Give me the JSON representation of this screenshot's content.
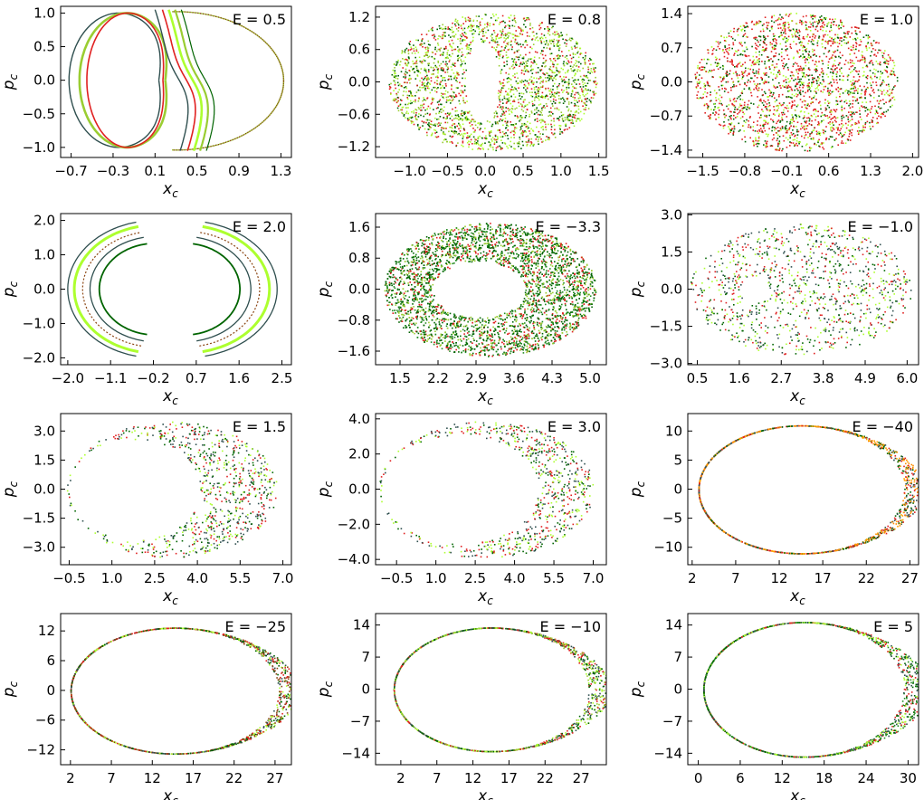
{
  "chart_data": [
    {
      "type": "scatter",
      "annotation": "E = 0.5",
      "xlabel": "x",
      "xlabel_sub": "c",
      "ylabel": "p",
      "ylabel_sub": "c",
      "xlim": [
        -0.8,
        1.4
      ],
      "ylim": [
        -1.15,
        1.1
      ],
      "xticks": [
        -0.7,
        -0.3,
        0.1,
        0.5,
        0.9,
        1.3
      ],
      "xtick_labels": [
        "−0.7",
        "−0.3",
        "0.1",
        "0.5",
        "0.9",
        "1.3"
      ],
      "yticks": [
        -1.0,
        -0.5,
        0.0,
        0.5,
        1.0
      ],
      "ytick_labels": [
        "−1.0",
        "−0.5",
        "0.0",
        "0.5",
        "1.0"
      ],
      "pattern": "curves",
      "cx": 0.28,
      "rx": 1.05,
      "ry": 1.05,
      "hole_rx": 0.0,
      "hole_ry": 0.0,
      "colors": [
        "#2f4f4f",
        "#e02020",
        "#adff2f",
        "#9acd32",
        "#006400"
      ]
    },
    {
      "type": "scatter",
      "annotation": "E = 0.8",
      "xlabel": "x",
      "xlabel_sub": "c",
      "ylabel": "p",
      "ylabel_sub": "c",
      "xlim": [
        -1.45,
        1.6
      ],
      "ylim": [
        -1.4,
        1.4
      ],
      "xticks": [
        -1.0,
        -0.5,
        0.0,
        0.5,
        1.0,
        1.5
      ],
      "xtick_labels": [
        "−1.0",
        "−0.5",
        "0.0",
        "0.5",
        "1.0",
        "1.5"
      ],
      "yticks": [
        -1.2,
        -0.6,
        0.0,
        0.6,
        1.2
      ],
      "ytick_labels": [
        "−1.2",
        "−0.6",
        "0.0",
        "0.6",
        "1.2"
      ],
      "pattern": "chaos",
      "cx": 0.1,
      "rx": 1.38,
      "ry": 1.27,
      "hole_cx": -0.05,
      "hole_rx": 0.22,
      "hole_ry": 0.75,
      "n": 2600,
      "colors": [
        "#9acd32",
        "#006400",
        "#e02020",
        "#adff2f"
      ]
    },
    {
      "type": "scatter",
      "annotation": "E = 1.0",
      "xlabel": "x",
      "xlabel_sub": "c",
      "ylabel": "p",
      "ylabel_sub": "c",
      "xlim": [
        -1.75,
        2.1
      ],
      "ylim": [
        -1.55,
        1.55
      ],
      "xticks": [
        -1.5,
        -0.8,
        -0.1,
        0.6,
        1.3,
        2.0
      ],
      "xtick_labels": [
        "−1.5",
        "−0.8",
        "−0.1",
        "0.6",
        "1.3",
        "2.0"
      ],
      "yticks": [
        -1.4,
        -0.7,
        0.0,
        0.7,
        1.4
      ],
      "ytick_labels": [
        "−1.4",
        "−0.7",
        "0.0",
        "0.7",
        "1.4"
      ],
      "pattern": "chaos",
      "cx": 0.05,
      "rx": 1.7,
      "ry": 1.42,
      "hole_cx": 0.0,
      "hole_rx": 0.0,
      "hole_ry": 0.0,
      "n": 2200,
      "colors": [
        "#e02020",
        "#e02020",
        "#006400",
        "#adff2f"
      ]
    },
    {
      "type": "scatter",
      "annotation": "E = 2.0",
      "xlabel": "x",
      "xlabel_sub": "c",
      "ylabel": "p",
      "ylabel_sub": "c",
      "xlim": [
        -2.15,
        2.7
      ],
      "ylim": [
        -2.2,
        2.2
      ],
      "xticks": [
        -2.0,
        -1.1,
        -0.2,
        0.7,
        1.6,
        2.5
      ],
      "xtick_labels": [
        "−2.0",
        "−1.1",
        "−0.2",
        "0.7",
        "1.6",
        "2.5"
      ],
      "yticks": [
        -2.0,
        -1.0,
        0.0,
        1.0,
        2.0
      ],
      "ytick_labels": [
        "−2.0",
        "−1.0",
        "0.0",
        "1.0",
        "2.0"
      ],
      "pattern": "crescents",
      "cx": 0.2,
      "rx": 2.3,
      "ry": 2.0,
      "hole_rx": 0.0,
      "hole_ry": 0.0,
      "colors": [
        "#2f4f4f",
        "#adff2f",
        "#006400",
        "#8b4513",
        "#9acd32"
      ]
    },
    {
      "type": "scatter",
      "annotation": "E = −3.3",
      "xlabel": "x",
      "xlabel_sub": "c",
      "ylabel": "p",
      "ylabel_sub": "c",
      "xlim": [
        1.05,
        5.3
      ],
      "ylim": [
        -1.95,
        1.95
      ],
      "xticks": [
        1.5,
        2.2,
        2.9,
        3.6,
        4.3,
        5.0
      ],
      "xtick_labels": [
        "1.5",
        "2.2",
        "2.9",
        "3.6",
        "4.3",
        "5.0"
      ],
      "yticks": [
        -1.6,
        -0.8,
        0.0,
        0.8,
        1.6
      ],
      "ytick_labels": [
        "−1.6",
        "−0.8",
        "0.0",
        "0.8",
        "1.6"
      ],
      "pattern": "chaos",
      "cx": 3.15,
      "rx": 1.95,
      "ry": 1.72,
      "hole_cx": 2.95,
      "hole_rx": 0.85,
      "hole_ry": 0.72,
      "n": 5200,
      "colors": [
        "#006400",
        "#006400",
        "#228b22",
        "#e02020",
        "#9acd32"
      ]
    },
    {
      "type": "scatter",
      "annotation": "E = −1.0",
      "xlabel": "x",
      "xlabel_sub": "c",
      "ylabel": "p",
      "ylabel_sub": "c",
      "xlim": [
        0.25,
        6.3
      ],
      "ylim": [
        -3.05,
        3.05
      ],
      "xticks": [
        0.5,
        1.6,
        2.7,
        3.8,
        4.9,
        6.0
      ],
      "xtick_labels": [
        "0.5",
        "1.6",
        "2.7",
        "3.8",
        "4.9",
        "6.0"
      ],
      "yticks": [
        -3.0,
        -1.5,
        0.0,
        1.5,
        3.0
      ],
      "ytick_labels": [
        "−3.0",
        "−1.5",
        "0.0",
        "1.5",
        "3.0"
      ],
      "pattern": "chaos",
      "cx": 3.2,
      "rx": 2.9,
      "ry": 2.65,
      "hole_cx": 2.0,
      "hole_rx": 0.4,
      "hole_ry": 0.5,
      "n": 1100,
      "colors": [
        "#e02020",
        "#006400",
        "#adff2f",
        "#2f4f4f"
      ]
    },
    {
      "type": "scatter",
      "annotation": "E = 1.5",
      "xlabel": "x",
      "xlabel_sub": "c",
      "ylabel": "p",
      "ylabel_sub": "c",
      "xlim": [
        -0.8,
        7.3
      ],
      "ylim": [
        -3.9,
        3.9
      ],
      "xticks": [
        -0.5,
        1.0,
        2.5,
        4.0,
        5.5,
        7.0
      ],
      "xtick_labels": [
        "−0.5",
        "1.0",
        "2.5",
        "4.0",
        "5.5",
        "7.0"
      ],
      "yticks": [
        -3.0,
        -1.5,
        0.0,
        1.5,
        3.0
      ],
      "ytick_labels": [
        "−3.0",
        "−1.5",
        "0.0",
        "1.5",
        "3.0"
      ],
      "pattern": "chaos",
      "cx": 3.1,
      "rx": 3.7,
      "ry": 3.5,
      "hole_cx": 1.8,
      "hole_rx": 2.3,
      "hole_ry": 2.6,
      "n": 1500,
      "colors": [
        "#e02020",
        "#006400",
        "#2f4f4f",
        "#adff2f"
      ]
    },
    {
      "type": "scatter",
      "annotation": "E = 3.0",
      "xlabel": "x",
      "xlabel_sub": "c",
      "ylabel": "p",
      "ylabel_sub": "c",
      "xlim": [
        -1.3,
        7.5
      ],
      "ylim": [
        -4.3,
        4.3
      ],
      "xticks": [
        -0.5,
        1.0,
        2.5,
        4.0,
        5.5,
        7.0
      ],
      "xtick_labels": [
        "−0.5",
        "1.0",
        "2.5",
        "4.0",
        "5.5",
        "7.0"
      ],
      "yticks": [
        -4.0,
        -2.0,
        0.0,
        2.0,
        4.0
      ],
      "ytick_labels": [
        "−4.0",
        "−2.0",
        "0.0",
        "2.0",
        "4.0"
      ],
      "pattern": "chaos",
      "cx": 2.9,
      "rx": 4.1,
      "ry": 3.9,
      "hole_cx": 1.9,
      "hole_rx": 3.0,
      "hole_ry": 3.1,
      "n": 1700,
      "colors": [
        "#e02020",
        "#006400",
        "#adff2f",
        "#2f4f4f"
      ]
    },
    {
      "type": "scatter",
      "annotation": "E = −40",
      "xlabel": "x",
      "xlabel_sub": "c",
      "ylabel": "p",
      "ylabel_sub": "c",
      "xlim": [
        1.5,
        28.0
      ],
      "ylim": [
        -13.0,
        13.0
      ],
      "xticks": [
        2,
        7,
        12,
        17,
        22,
        27
      ],
      "xtick_labels": [
        "2",
        "7",
        "12",
        "17",
        "22",
        "27"
      ],
      "yticks": [
        -10,
        -5,
        0,
        5,
        10
      ],
      "ytick_labels": [
        "−10",
        "−5",
        "0",
        "5",
        "10"
      ],
      "pattern": "rings",
      "cx": 14.5,
      "rx": 11.8,
      "ry": 11.0,
      "spread": 2.2,
      "n": 1300,
      "colors": [
        "#2f4f4f",
        "#ff8c00",
        "#ffa500",
        "#006400",
        "#e02020"
      ]
    },
    {
      "type": "scatter",
      "annotation": "E = −25",
      "xlabel": "x",
      "xlabel_sub": "c",
      "ylabel": "p",
      "ylabel_sub": "c",
      "xlim": [
        0.8,
        29.0
      ],
      "ylim": [
        -15.0,
        15.5
      ],
      "xticks": [
        2,
        7,
        12,
        17,
        22,
        27
      ],
      "xtick_labels": [
        "2",
        "7",
        "12",
        "17",
        "22",
        "27"
      ],
      "yticks": [
        -12,
        -6,
        0,
        6,
        12
      ],
      "ytick_labels": [
        "−12",
        "−6",
        "0",
        "6",
        "12"
      ],
      "pattern": "rings",
      "cx": 14.7,
      "rx": 12.7,
      "ry": 12.7,
      "spread": 2.4,
      "n": 1300,
      "colors": [
        "#8b4513",
        "#e02020",
        "#006400",
        "#adff2f",
        "#2f4f4f"
      ]
    },
    {
      "type": "scatter",
      "annotation": "E = −10",
      "xlabel": "x",
      "xlabel_sub": "c",
      "ylabel": "p",
      "ylabel_sub": "c",
      "xlim": [
        -1.5,
        30.5
      ],
      "ylim": [
        -16.5,
        16.5
      ],
      "xticks": [
        2,
        7,
        12,
        17,
        22,
        27
      ],
      "xtick_labels": [
        "2",
        "7",
        "12",
        "17",
        "22",
        "27"
      ],
      "yticks": [
        -14,
        -7,
        0,
        7,
        14
      ],
      "ytick_labels": [
        "−14",
        "−7",
        "0",
        "7",
        "14"
      ],
      "pattern": "rings",
      "cx": 14.5,
      "rx": 13.5,
      "ry": 13.5,
      "spread": 3.0,
      "n": 1400,
      "colors": [
        "#adff2f",
        "#e02020",
        "#006400",
        "#9acd32",
        "#2f4f4f"
      ]
    },
    {
      "type": "scatter",
      "annotation": "E = 5",
      "xlabel": "x",
      "xlabel_sub": "c",
      "ylabel": "p",
      "ylabel_sub": "c",
      "xlim": [
        -1.5,
        31.5
      ],
      "ylim": [
        -16.5,
        16.5
      ],
      "xticks": [
        0,
        6,
        12,
        18,
        24,
        30
      ],
      "xtick_labels": [
        "0",
        "6",
        "12",
        "18",
        "24",
        "30"
      ],
      "yticks": [
        -14,
        -7,
        0,
        7,
        14
      ],
      "ytick_labels": [
        "−14",
        "−7",
        "0",
        "7",
        "14"
      ],
      "pattern": "rings",
      "cx": 15.0,
      "rx": 14.3,
      "ry": 14.7,
      "spread": 3.6,
      "n": 1500,
      "colors": [
        "#006400",
        "#228b22",
        "#adff2f",
        "#e02020",
        "#2f4f4f"
      ]
    }
  ]
}
